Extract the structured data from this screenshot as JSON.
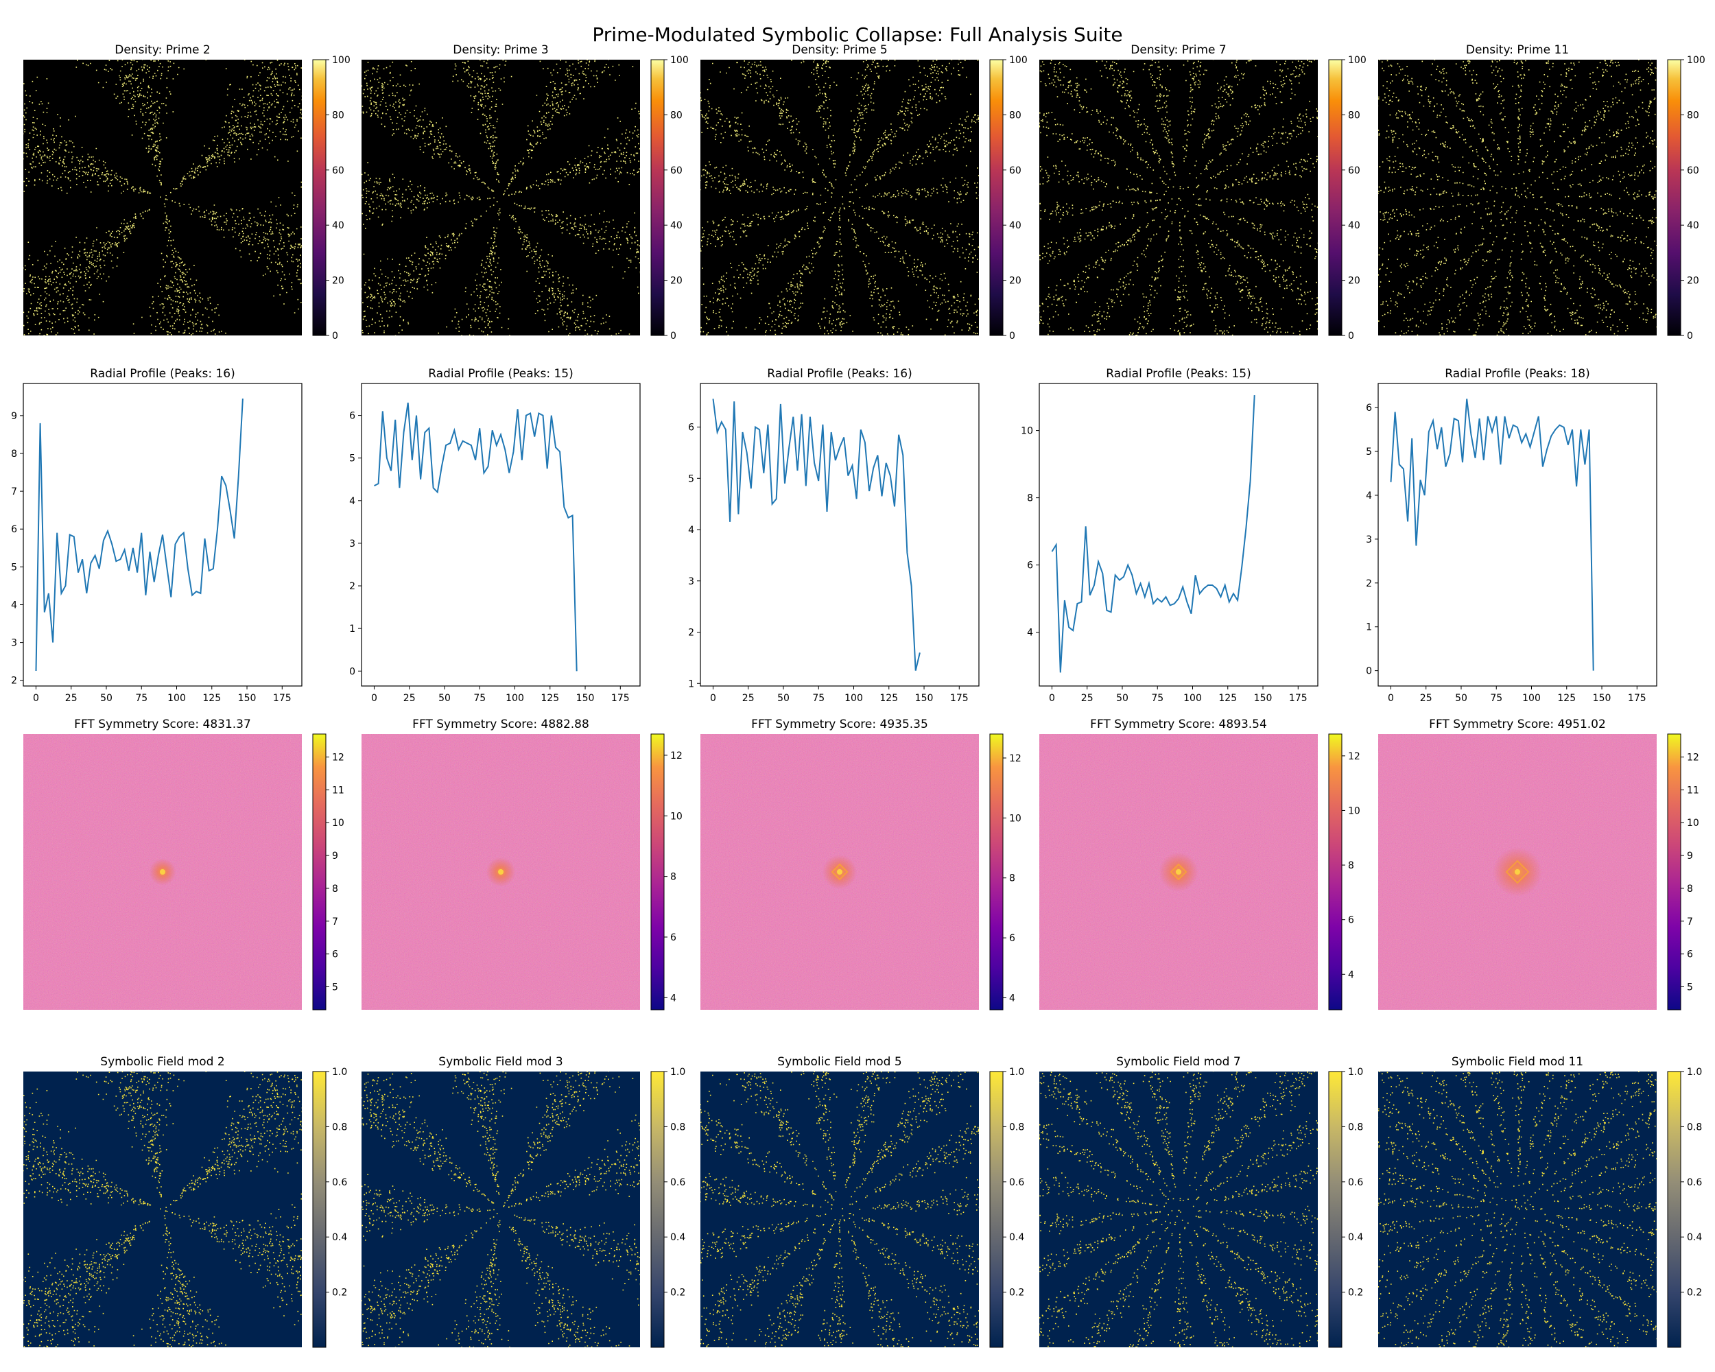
{
  "title": "Prime-Modulated Symbolic Collapse: Full Analysis Suite",
  "colors": {
    "line": "#1f77b4",
    "density_bg": "#000000",
    "density_dot": "#f2ee7a",
    "mod_bg": "#00224e",
    "mod_dot": "#fee838",
    "fft_base": "#cf4f83"
  },
  "chart_data": [
    {
      "type": "heatmap",
      "row": "density",
      "prime": 2,
      "arms": 6,
      "title": "Density: Prime 2",
      "colormap": "inferno",
      "colorbar_ticks": [
        "0",
        "20",
        "40",
        "60",
        "80",
        "100"
      ],
      "clim": [
        0,
        100
      ]
    },
    {
      "type": "heatmap",
      "row": "density",
      "prime": 3,
      "arms": 9,
      "title": "Density: Prime 3",
      "colormap": "inferno",
      "colorbar_ticks": [
        "0",
        "20",
        "40",
        "60",
        "80",
        "100"
      ],
      "clim": [
        0,
        100
      ]
    },
    {
      "type": "heatmap",
      "row": "density",
      "prime": 5,
      "arms": 15,
      "title": "Density: Prime 5",
      "colormap": "inferno",
      "colorbar_ticks": [
        "0",
        "20",
        "40",
        "60",
        "80",
        "100"
      ],
      "clim": [
        0,
        100
      ]
    },
    {
      "type": "heatmap",
      "row": "density",
      "prime": 7,
      "arms": 21,
      "title": "Density: Prime 7",
      "colormap": "inferno",
      "colorbar_ticks": [
        "0",
        "20",
        "40",
        "60",
        "80",
        "100"
      ],
      "clim": [
        0,
        100
      ]
    },
    {
      "type": "heatmap",
      "row": "density",
      "prime": 11,
      "arms": 33,
      "title": "Density: Prime 11",
      "colormap": "inferno",
      "colorbar_ticks": [
        "0",
        "20",
        "40",
        "60",
        "80",
        "100"
      ],
      "clim": [
        0,
        100
      ]
    },
    {
      "type": "line",
      "row": "radial",
      "title": "Radial Profile (Peaks: 16)",
      "x_ticks": [
        "0",
        "25",
        "50",
        "75",
        "100",
        "125",
        "150",
        "175"
      ],
      "y_ticks": [
        "2",
        "3",
        "4",
        "5",
        "6",
        "7",
        "8",
        "9"
      ],
      "xlim": [
        -9,
        189
      ],
      "ylim": [
        1.85,
        9.85
      ],
      "x_step": 3,
      "values": [
        2.25,
        8.8,
        3.8,
        4.3,
        3.0,
        5.9,
        4.3,
        4.5,
        5.85,
        5.8,
        4.85,
        5.2,
        4.3,
        5.1,
        5.3,
        4.95,
        5.7,
        5.95,
        5.6,
        5.15,
        5.2,
        5.45,
        4.9,
        5.5,
        4.85,
        5.9,
        4.25,
        5.4,
        4.6,
        5.3,
        5.85,
        5.0,
        4.2,
        5.6,
        5.8,
        5.9,
        4.95,
        4.25,
        4.35,
        4.3,
        5.75,
        4.9,
        4.95,
        6.0,
        7.4,
        7.15,
        6.5,
        5.75,
        7.4,
        9.45
      ]
    },
    {
      "type": "line",
      "row": "radial",
      "title": "Radial Profile (Peaks: 15)",
      "x_ticks": [
        "0",
        "25",
        "50",
        "75",
        "100",
        "125",
        "150",
        "175"
      ],
      "y_ticks": [
        "0",
        "1",
        "2",
        "3",
        "4",
        "5",
        "6"
      ],
      "xlim": [
        -9,
        189
      ],
      "ylim": [
        -0.35,
        6.75
      ],
      "x_step": 3,
      "values": [
        4.35,
        4.4,
        6.1,
        5.0,
        4.7,
        5.9,
        4.3,
        5.6,
        6.3,
        4.95,
        6.0,
        4.5,
        5.6,
        5.7,
        4.3,
        4.2,
        4.8,
        5.3,
        5.35,
        5.65,
        5.2,
        5.4,
        5.35,
        5.3,
        4.95,
        5.7,
        4.65,
        4.8,
        5.65,
        5.3,
        5.55,
        5.2,
        4.65,
        5.15,
        6.15,
        4.95,
        6.0,
        6.05,
        5.5,
        6.05,
        6.0,
        4.75,
        6.0,
        5.25,
        5.15,
        3.85,
        3.6,
        3.65,
        0.0
      ]
    },
    {
      "type": "line",
      "row": "radial",
      "title": "Radial Profile (Peaks: 16)",
      "x_ticks": [
        "0",
        "25",
        "50",
        "75",
        "100",
        "125",
        "150",
        "175"
      ],
      "y_ticks": [
        "1",
        "2",
        "3",
        "4",
        "5",
        "6"
      ],
      "xlim": [
        -9,
        189
      ],
      "ylim": [
        0.95,
        6.85
      ],
      "x_step": 3,
      "values": [
        6.55,
        5.9,
        6.1,
        5.95,
        4.15,
        6.5,
        4.3,
        5.9,
        5.5,
        4.8,
        6.0,
        5.95,
        5.1,
        6.05,
        4.5,
        4.6,
        6.45,
        4.9,
        5.6,
        6.2,
        5.15,
        6.25,
        4.85,
        6.2,
        5.3,
        4.95,
        6.05,
        4.35,
        5.9,
        5.35,
        5.6,
        5.8,
        5.05,
        5.25,
        4.6,
        5.95,
        5.7,
        4.75,
        5.2,
        5.45,
        4.65,
        5.3,
        5.05,
        4.45,
        5.85,
        5.45,
        3.55,
        2.9,
        1.25,
        1.6
      ]
    },
    {
      "type": "line",
      "row": "radial",
      "title": "Radial Profile (Peaks: 15)",
      "x_ticks": [
        "0",
        "25",
        "50",
        "75",
        "100",
        "125",
        "150",
        "175"
      ],
      "y_ticks": [
        "4",
        "6",
        "8",
        "10"
      ],
      "xlim": [
        -9,
        189
      ],
      "ylim": [
        2.4,
        11.4
      ],
      "x_step": 3,
      "values": [
        6.4,
        6.6,
        2.8,
        4.95,
        4.15,
        4.05,
        4.85,
        4.9,
        7.15,
        5.1,
        5.4,
        6.1,
        5.75,
        4.65,
        4.6,
        5.7,
        5.55,
        5.65,
        6.0,
        5.7,
        5.15,
        5.45,
        5.05,
        5.45,
        4.85,
        5.0,
        4.9,
        5.05,
        4.8,
        4.85,
        5.0,
        5.35,
        4.9,
        4.55,
        5.7,
        5.15,
        5.3,
        5.4,
        5.4,
        5.3,
        5.05,
        5.4,
        4.9,
        5.15,
        4.95,
        5.95,
        7.1,
        8.5,
        11.05
      ]
    },
    {
      "type": "line",
      "row": "radial",
      "title": "Radial Profile (Peaks: 18)",
      "x_ticks": [
        "0",
        "25",
        "50",
        "75",
        "100",
        "125",
        "150",
        "175"
      ],
      "y_ticks": [
        "0",
        "1",
        "2",
        "3",
        "4",
        "5",
        "6"
      ],
      "xlim": [
        -9,
        189
      ],
      "ylim": [
        -0.35,
        6.55
      ],
      "x_step": 3,
      "values": [
        4.3,
        5.9,
        4.7,
        4.6,
        3.4,
        5.3,
        2.85,
        4.35,
        4.0,
        5.45,
        5.7,
        5.05,
        5.55,
        4.65,
        4.95,
        5.75,
        5.7,
        4.75,
        6.2,
        5.4,
        4.85,
        5.75,
        4.8,
        5.8,
        5.45,
        5.8,
        4.7,
        5.8,
        5.3,
        5.6,
        5.55,
        5.2,
        5.4,
        5.1,
        5.45,
        5.8,
        4.65,
        5.05,
        5.35,
        5.5,
        5.6,
        5.55,
        5.15,
        5.5,
        4.2,
        5.5,
        4.7,
        5.5,
        0.0
      ]
    },
    {
      "type": "heatmap",
      "row": "fft",
      "prime": 2,
      "title": "FFT Symmetry Score: 4831.37",
      "colormap": "plasma",
      "colorbar_ticks": [
        "5",
        "6",
        "7",
        "8",
        "9",
        "10",
        "11",
        "12"
      ],
      "clim": [
        4.3,
        12.7
      ],
      "score": 4831.37
    },
    {
      "type": "heatmap",
      "row": "fft",
      "prime": 3,
      "title": "FFT Symmetry Score: 4882.88",
      "colormap": "plasma",
      "colorbar_ticks": [
        "4",
        "6",
        "8",
        "10",
        "12"
      ],
      "clim": [
        3.6,
        12.7
      ],
      "score": 4882.88
    },
    {
      "type": "heatmap",
      "row": "fft",
      "prime": 5,
      "title": "FFT Symmetry Score: 4935.35",
      "colormap": "plasma",
      "colorbar_ticks": [
        "4",
        "6",
        "8",
        "10",
        "12"
      ],
      "clim": [
        3.6,
        12.8
      ],
      "score": 4935.35
    },
    {
      "type": "heatmap",
      "row": "fft",
      "prime": 7,
      "title": "FFT Symmetry Score: 4893.54",
      "colormap": "plasma",
      "colorbar_ticks": [
        "4",
        "6",
        "8",
        "10",
        "12"
      ],
      "clim": [
        2.7,
        12.8
      ],
      "score": 4893.54
    },
    {
      "type": "heatmap",
      "row": "fft",
      "prime": 11,
      "title": "FFT Symmetry Score: 4951.02",
      "colormap": "plasma",
      "colorbar_ticks": [
        "5",
        "6",
        "7",
        "8",
        "9",
        "10",
        "11",
        "12"
      ],
      "clim": [
        4.3,
        12.7
      ],
      "score": 4951.02
    },
    {
      "type": "heatmap",
      "row": "mod",
      "prime": 2,
      "arms": 6,
      "title": "Symbolic Field mod 2",
      "colormap": "cividis",
      "colorbar_ticks": [
        "0.2",
        "0.4",
        "0.6",
        "0.8",
        "1.0"
      ],
      "clim": [
        0,
        1
      ]
    },
    {
      "type": "heatmap",
      "row": "mod",
      "prime": 3,
      "arms": 9,
      "title": "Symbolic Field mod 3",
      "colormap": "cividis",
      "colorbar_ticks": [
        "0.2",
        "0.4",
        "0.6",
        "0.8",
        "1.0"
      ],
      "clim": [
        0,
        1
      ]
    },
    {
      "type": "heatmap",
      "row": "mod",
      "prime": 5,
      "arms": 15,
      "title": "Symbolic Field mod 5",
      "colormap": "cividis",
      "colorbar_ticks": [
        "0.2",
        "0.4",
        "0.6",
        "0.8",
        "1.0"
      ],
      "clim": [
        0,
        1
      ]
    },
    {
      "type": "heatmap",
      "row": "mod",
      "prime": 7,
      "arms": 21,
      "title": "Symbolic Field mod 7",
      "colormap": "cividis",
      "colorbar_ticks": [
        "0.2",
        "0.4",
        "0.6",
        "0.8",
        "1.0"
      ],
      "clim": [
        0,
        1
      ]
    },
    {
      "type": "heatmap",
      "row": "mod",
      "prime": 11,
      "arms": 33,
      "title": "Symbolic Field mod 11",
      "colormap": "cividis",
      "colorbar_ticks": [
        "0.2",
        "0.4",
        "0.6",
        "0.8",
        "1.0"
      ],
      "clim": [
        0,
        1
      ]
    }
  ]
}
